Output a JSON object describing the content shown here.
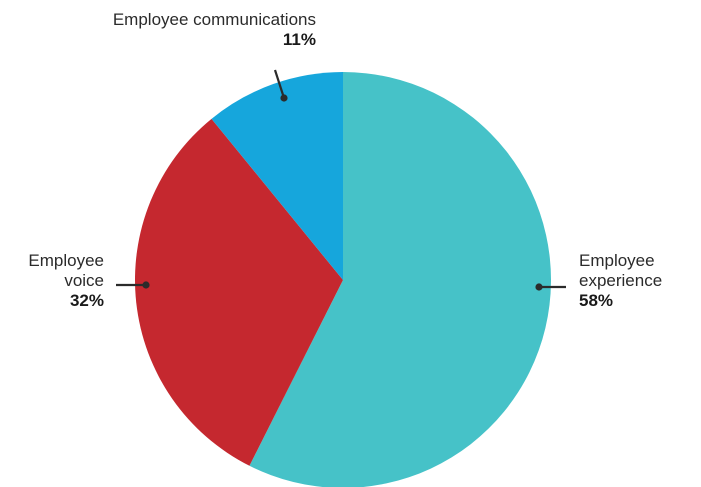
{
  "chart_data": {
    "type": "pie",
    "title": "",
    "legend": "none (labels placed next to slices with leader lines)",
    "slices": [
      {
        "label_lines": [
          "Employee",
          "experience"
        ],
        "value": 58,
        "value_label": "58%",
        "color": "#46c2c8"
      },
      {
        "label_lines": [
          "Employee",
          "voice"
        ],
        "value": 32,
        "value_label": "32%",
        "color": "#c5282f"
      },
      {
        "label_lines": [
          "Employee communications"
        ],
        "value": 11,
        "value_label": "11%",
        "color": "#16a6dc"
      }
    ],
    "start_direction": "12 o'clock",
    "direction": "clockwise",
    "leader_color": "#2b2b2b"
  }
}
